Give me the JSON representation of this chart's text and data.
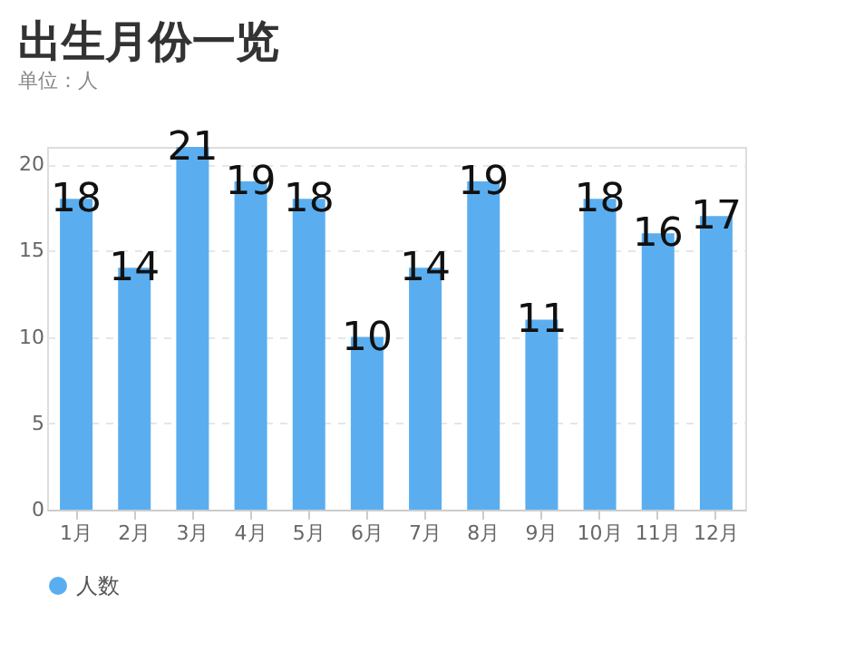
{
  "chart_data": {
    "type": "bar",
    "title": "出生月份一览",
    "subtitle": "单位：人",
    "categories": [
      "1月",
      "2月",
      "3月",
      "4月",
      "5月",
      "6月",
      "7月",
      "8月",
      "9月",
      "10月",
      "11月",
      "12月"
    ],
    "series": [
      {
        "name": "人数",
        "color": "#5aaef0",
        "values": [
          18,
          14,
          21,
          19,
          18,
          10,
          14,
          19,
          11,
          18,
          16,
          17
        ]
      }
    ],
    "ylim": [
      0,
      21
    ],
    "yticks": [
      0,
      5,
      10,
      15,
      20
    ],
    "grid": "y",
    "legend": "bottom",
    "data_labels": true
  }
}
